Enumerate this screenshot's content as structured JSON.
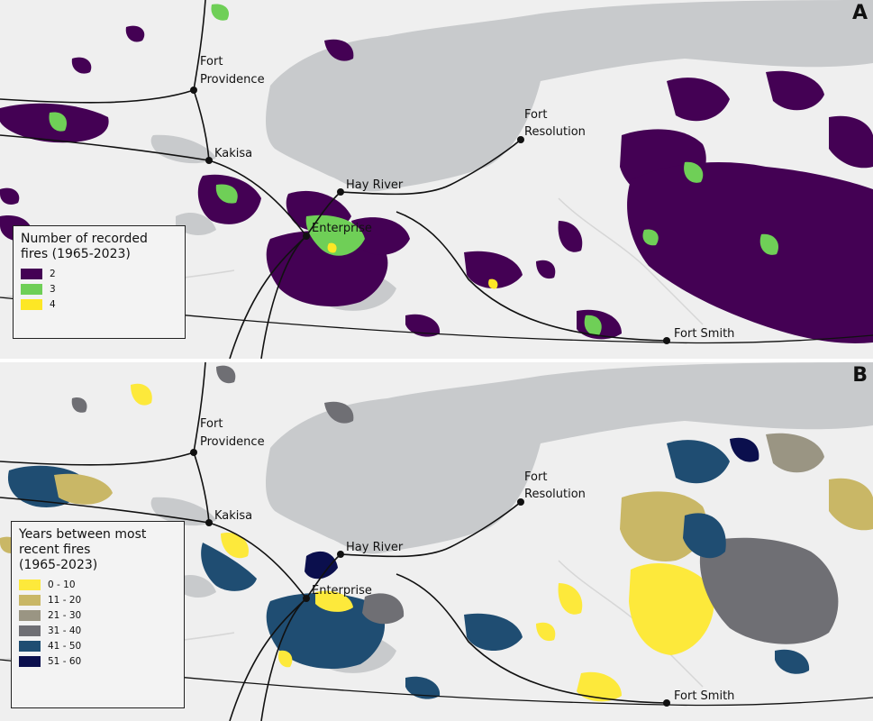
{
  "panels": [
    {
      "letter": "A",
      "legend": {
        "title": "Number of recorded\nfires (1965-2023)",
        "items": [
          {
            "label": "2",
            "color": "#440154"
          },
          {
            "label": "3",
            "color": "#6fcf57"
          },
          {
            "label": "4",
            "color": "#fde725"
          }
        ]
      }
    },
    {
      "letter": "B",
      "legend": {
        "title": "Years between most\nrecent fires\n(1965-2023)",
        "items": [
          {
            "label": "0 - 10",
            "color": "#fde93b"
          },
          {
            "label": "11 - 20",
            "color": "#c9b766"
          },
          {
            "label": "21 - 30",
            "color": "#9a9583"
          },
          {
            "label": "31 - 40",
            "color": "#6f6f74"
          },
          {
            "label": "41 - 50",
            "color": "#1f4d72"
          },
          {
            "label": "51 - 60",
            "color": "#0b0f4d"
          }
        ]
      }
    }
  ],
  "towns": {
    "fort_providence_1": "Fort",
    "fort_providence_2": "Providence",
    "fort_resolution_1": "Fort",
    "fort_resolution_2": "Resolution",
    "kakisa": "Kakisa",
    "hay_river": "Hay River",
    "enterprise": "Enterprise",
    "fort_smith": "Fort Smith"
  },
  "colors": {
    "background": "#efefef",
    "water": "#c8cacc",
    "roads": "#111111",
    "rivers": "#d6d6d6"
  }
}
